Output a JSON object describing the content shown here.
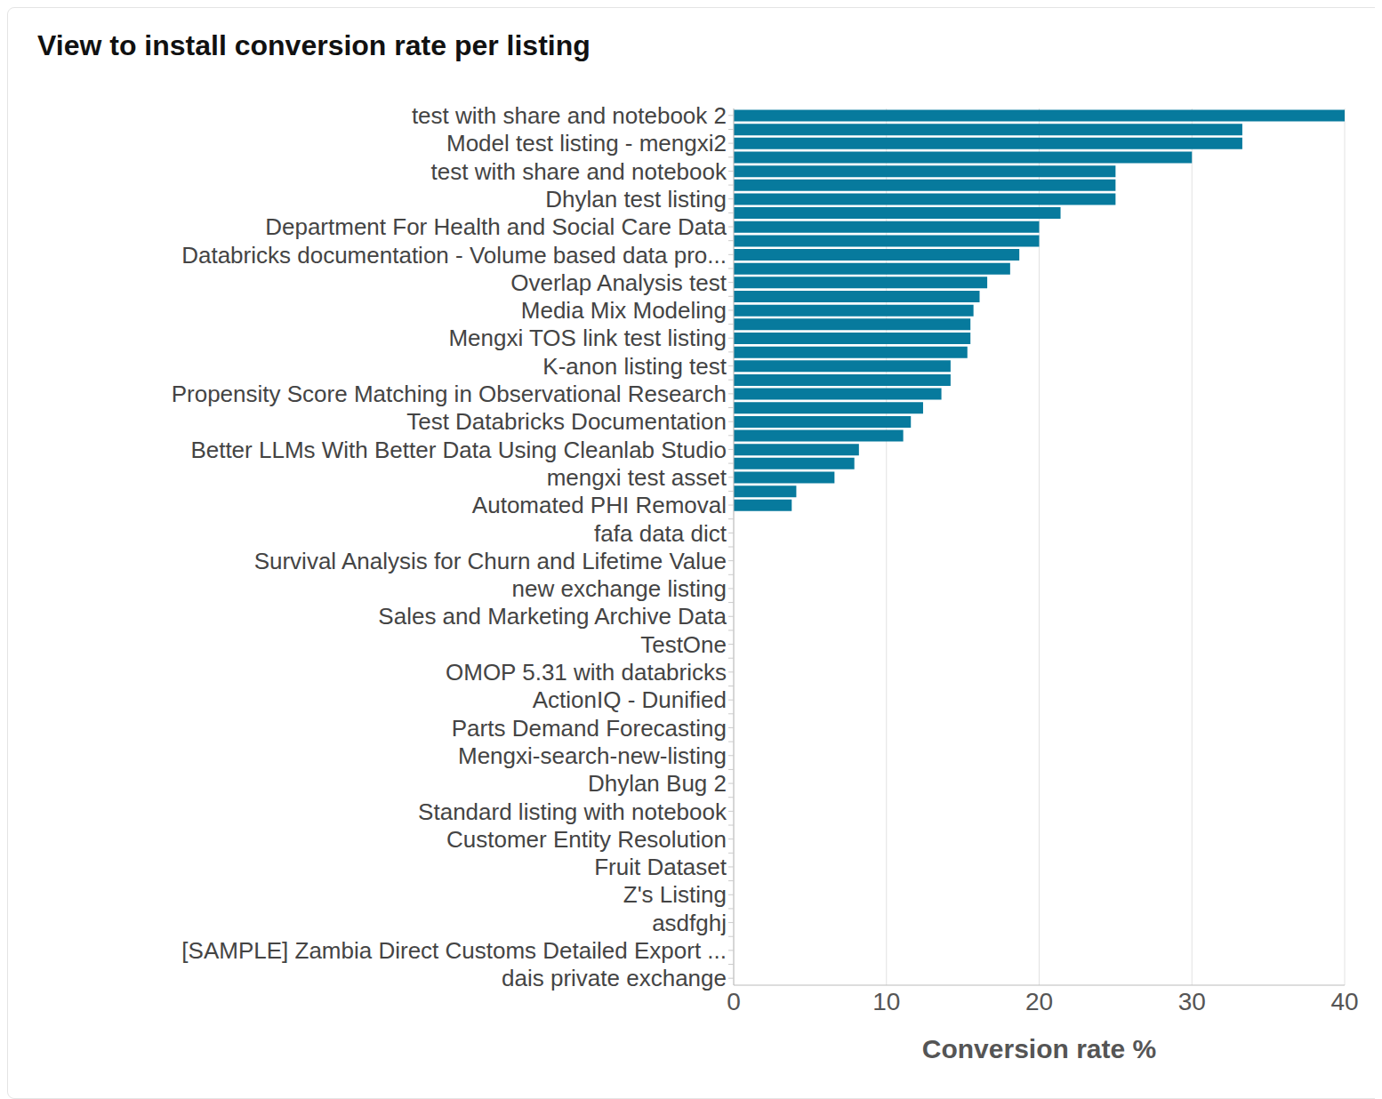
{
  "chart_data": {
    "type": "bar",
    "title": "View to install conversion rate per listing",
    "orientation": "horizontal",
    "xlabel": "Conversion rate %",
    "categories": [
      "test with share and notebook 2",
      null,
      "Model test listing - mengxi2",
      null,
      "test with share and notebook",
      null,
      "Dhylan test listing",
      null,
      "Department For Health and Social Care Data",
      null,
      "Databricks documentation - Volume based data pro...",
      null,
      "Overlap Analysis test",
      null,
      "Media Mix Modeling",
      null,
      "Mengxi TOS link test listing",
      null,
      "K-anon listing test",
      null,
      "Propensity Score Matching in Observational Research",
      null,
      "Test Databricks Documentation",
      null,
      "Better LLMs With Better Data Using Cleanlab Studio",
      null,
      "mengxi test asset",
      null,
      "Automated PHI Removal",
      null,
      "fafa data dict",
      null,
      "Survival Analysis for Churn and Lifetime Value",
      null,
      "new exchange listing",
      null,
      "Sales and Marketing Archive Data",
      null,
      "TestOne",
      null,
      "OMOP 5.31 with databricks",
      null,
      "ActionIQ - Dunified",
      null,
      "Parts Demand Forecasting",
      null,
      "Mengxi-search-new-listing",
      null,
      "Dhylan Bug 2",
      null,
      "Standard listing with notebook",
      null,
      "Customer Entity Resolution",
      null,
      "Fruit Dataset",
      null,
      "Z's Listing",
      null,
      "asdfghj",
      null,
      "[SAMPLE] Zambia Direct Customs Detailed Export ...",
      null,
      "dais private exchange"
    ],
    "values": [
      40,
      33.3,
      33.3,
      30,
      25,
      25,
      25,
      21.4,
      20,
      20,
      18.7,
      18.1,
      16.6,
      16.1,
      15.7,
      15.5,
      15.5,
      15.3,
      14.2,
      14.2,
      13.6,
      12.4,
      11.6,
      11.1,
      8.2,
      7.9,
      6.6,
      4.1,
      3.8,
      0,
      0,
      0,
      0,
      0,
      0,
      0,
      0,
      0,
      0,
      0,
      0,
      0,
      0,
      0,
      0,
      0,
      0,
      0,
      0,
      0,
      0,
      0,
      0,
      0,
      0,
      0,
      0,
      0,
      0,
      0,
      0,
      0,
      0
    ],
    "color": "#077a9d",
    "xlim": [
      0,
      40
    ],
    "xticks": [
      0,
      10,
      20,
      30,
      40
    ],
    "grid": true
  }
}
